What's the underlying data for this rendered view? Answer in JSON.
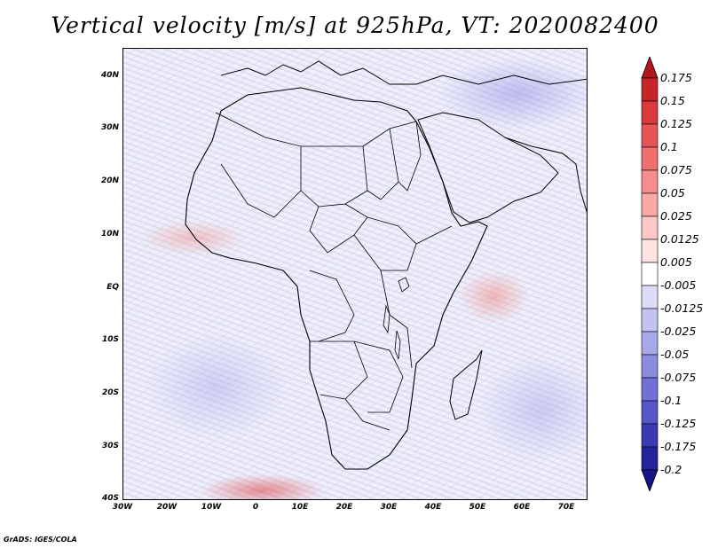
{
  "title": "Vertical velocity [m/s] at 925hPa, VT: 2020082400",
  "credit": "GrADS: IGES/COLA",
  "map": {
    "lat_labels": [
      "40N",
      "30N",
      "20N",
      "10N",
      "EQ",
      "10S",
      "20S",
      "30S",
      "40S"
    ],
    "lon_labels": [
      "30W",
      "20W",
      "10W",
      "0",
      "10E",
      "20E",
      "30E",
      "40E",
      "50E",
      "60E",
      "70E"
    ],
    "lat_range": [
      -40,
      45
    ],
    "lon_range": [
      -30,
      75
    ]
  },
  "colorbar": {
    "labels": [
      "0.175",
      "0.15",
      "0.125",
      "0.1",
      "0.075",
      "0.05",
      "0.025",
      "0.0125",
      "0.005",
      "-0.005",
      "-0.0125",
      "-0.025",
      "-0.05",
      "-0.075",
      "-0.1",
      "-0.125",
      "-0.175",
      "-0.2"
    ],
    "colors": [
      "#b0161a",
      "#c7252a",
      "#d83a3d",
      "#e85556",
      "#f07070",
      "#f48d8b",
      "#f8aaa7",
      "#fbc8c6",
      "#fde3e2",
      "#ffffff",
      "#dcdcf6",
      "#c3c3f0",
      "#a8a8e8",
      "#8c8cdf",
      "#7070d6",
      "#5656c9",
      "#3a3ab5",
      "#23239a",
      "#15158a"
    ]
  }
}
